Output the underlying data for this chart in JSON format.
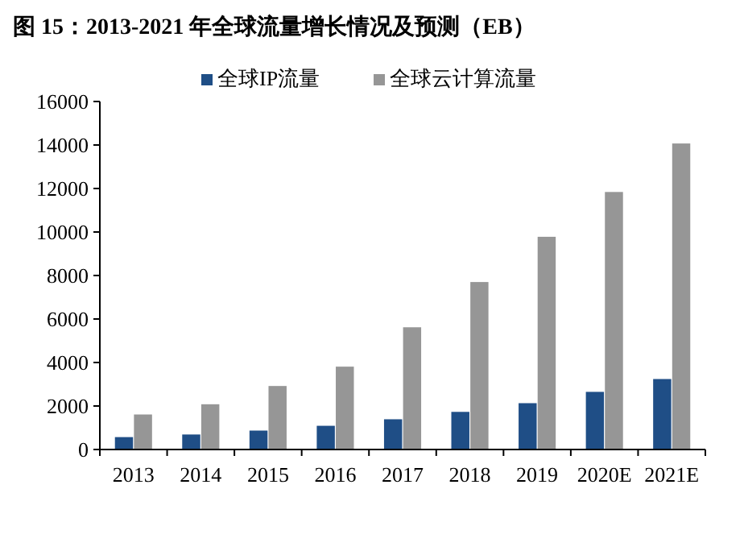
{
  "chart_data": {
    "type": "bar",
    "title": "图 15：2013-2021 年全球流量增长情况及预测（EB）",
    "categories": [
      "2013",
      "2014",
      "2015",
      "2016",
      "2017",
      "2018",
      "2019",
      "2020E",
      "2021E"
    ],
    "series": [
      {
        "name": "全球IP流量",
        "color": "#1f4e86",
        "values": [
          570,
          690,
          870,
          1090,
          1390,
          1730,
          2130,
          2650,
          3240
        ]
      },
      {
        "name": "全球云计算流量",
        "color": "#969696",
        "values": [
          1610,
          2080,
          2920,
          3810,
          5620,
          7700,
          9780,
          11840,
          14070
        ]
      }
    ],
    "ylim": [
      0,
      16000
    ],
    "yticks": [
      0,
      2000,
      4000,
      6000,
      8000,
      10000,
      12000,
      14000,
      16000
    ],
    "grid": false,
    "legend": "top"
  }
}
